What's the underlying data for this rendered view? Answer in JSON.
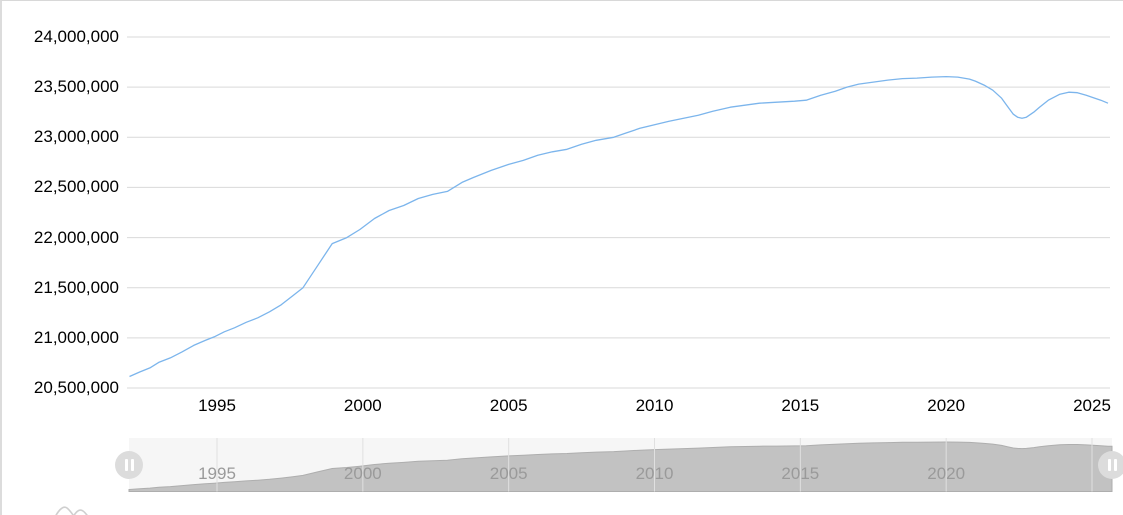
{
  "chart_data": {
    "type": "line",
    "title": "",
    "legend": "none",
    "grid": "horizontal",
    "line_color": "#7cb5ec",
    "x_domain": [
      1991.914,
      2025.617
    ],
    "y_axis": {
      "min": 20500000,
      "max": 24000000,
      "tick_interval": 500000,
      "tick_values": [
        20500000,
        21000000,
        21500000,
        22000000,
        22500000,
        23000000,
        23500000,
        24000000
      ],
      "tick_labels": [
        "20,500,000",
        "21,000,000",
        "21,500,000",
        "22,000,000",
        "22,500,000",
        "23,000,000",
        "23,500,000",
        "24,000,000"
      ]
    },
    "x_axis": {
      "tick_values": [
        1995,
        2000,
        2005,
        2010,
        2015,
        2020,
        2025
      ],
      "tick_labels": [
        "1995",
        "2000",
        "2005",
        "2010",
        "2015",
        "2020",
        "2025"
      ]
    },
    "series": [
      {
        "color": "#7cb5ec",
        "points": [
          [
            1992.0,
            20615000
          ],
          [
            1992.35,
            20660000
          ],
          [
            1992.7,
            20700000
          ],
          [
            1993.0,
            20755000
          ],
          [
            1993.4,
            20800000
          ],
          [
            1993.8,
            20860000
          ],
          [
            1994.2,
            20925000
          ],
          [
            1994.6,
            20975000
          ],
          [
            1994.9,
            21010000
          ],
          [
            1995.25,
            21060000
          ],
          [
            1995.6,
            21100000
          ],
          [
            1996.0,
            21155000
          ],
          [
            1996.4,
            21200000
          ],
          [
            1996.8,
            21260000
          ],
          [
            1997.2,
            21330000
          ],
          [
            1997.6,
            21420000
          ],
          [
            1997.95,
            21500000
          ],
          [
            1998.45,
            21720000
          ],
          [
            1998.95,
            21940000
          ],
          [
            1999.45,
            22000000
          ],
          [
            1999.9,
            22080000
          ],
          [
            2000.4,
            22190000
          ],
          [
            2000.9,
            22270000
          ],
          [
            2001.4,
            22320000
          ],
          [
            2001.9,
            22390000
          ],
          [
            2002.4,
            22430000
          ],
          [
            2002.9,
            22460000
          ],
          [
            2003.4,
            22550000
          ],
          [
            2003.8,
            22600000
          ],
          [
            2004.4,
            22670000
          ],
          [
            2005.0,
            22730000
          ],
          [
            2005.5,
            22770000
          ],
          [
            2006.0,
            22820000
          ],
          [
            2006.5,
            22855000
          ],
          [
            2007.0,
            22880000
          ],
          [
            2007.5,
            22930000
          ],
          [
            2008.0,
            22970000
          ],
          [
            2008.6,
            23000000
          ],
          [
            2009.0,
            23040000
          ],
          [
            2009.5,
            23090000
          ],
          [
            2010.0,
            23125000
          ],
          [
            2010.5,
            23160000
          ],
          [
            2011.0,
            23190000
          ],
          [
            2011.5,
            23220000
          ],
          [
            2012.0,
            23260000
          ],
          [
            2012.6,
            23300000
          ],
          [
            2013.1,
            23320000
          ],
          [
            2013.6,
            23340000
          ],
          [
            2014.2,
            23350000
          ],
          [
            2014.8,
            23360000
          ],
          [
            2015.2,
            23370000
          ],
          [
            2015.7,
            23420000
          ],
          [
            2016.2,
            23460000
          ],
          [
            2016.6,
            23500000
          ],
          [
            2017.0,
            23530000
          ],
          [
            2017.5,
            23550000
          ],
          [
            2018.0,
            23570000
          ],
          [
            2018.5,
            23585000
          ],
          [
            2019.0,
            23590000
          ],
          [
            2019.5,
            23600000
          ],
          [
            2020.0,
            23605000
          ],
          [
            2020.4,
            23600000
          ],
          [
            2020.8,
            23580000
          ],
          [
            2021.0,
            23560000
          ],
          [
            2021.3,
            23520000
          ],
          [
            2021.6,
            23470000
          ],
          [
            2021.9,
            23390000
          ],
          [
            2022.1,
            23310000
          ],
          [
            2022.3,
            23230000
          ],
          [
            2022.45,
            23200000
          ],
          [
            2022.6,
            23190000
          ],
          [
            2022.75,
            23200000
          ],
          [
            2023.0,
            23250000
          ],
          [
            2023.2,
            23300000
          ],
          [
            2023.5,
            23370000
          ],
          [
            2023.9,
            23430000
          ],
          [
            2024.2,
            23450000
          ],
          [
            2024.5,
            23445000
          ],
          [
            2024.8,
            23420000
          ],
          [
            2025.1,
            23390000
          ],
          [
            2025.3,
            23370000
          ],
          [
            2025.55,
            23340000
          ]
        ]
      }
    ]
  },
  "navigator": {
    "background_color": "#f6f6f6",
    "area_fill_color": "#c2c2c2",
    "area_line_color": "#aeaeae",
    "gridline_color": "#e0e0e0",
    "label_color": "#9a9a9a",
    "grid_values": [
      1995,
      2000,
      2005,
      2010,
      2015,
      2020,
      2025
    ],
    "tick_values": [
      1995,
      2000,
      2005,
      2010,
      2015,
      2020
    ],
    "tick_labels": [
      "1995",
      "2000",
      "2005",
      "2010",
      "2015",
      "2020"
    ],
    "handle_color": "#dcdcdc",
    "handle_grip": "pause-bars"
  },
  "style": {
    "gridline_color": "#d9d9d9",
    "axis_label_color": "#000000",
    "border_color": "#d8d8d8",
    "logo_color": "#cfcfcf"
  }
}
